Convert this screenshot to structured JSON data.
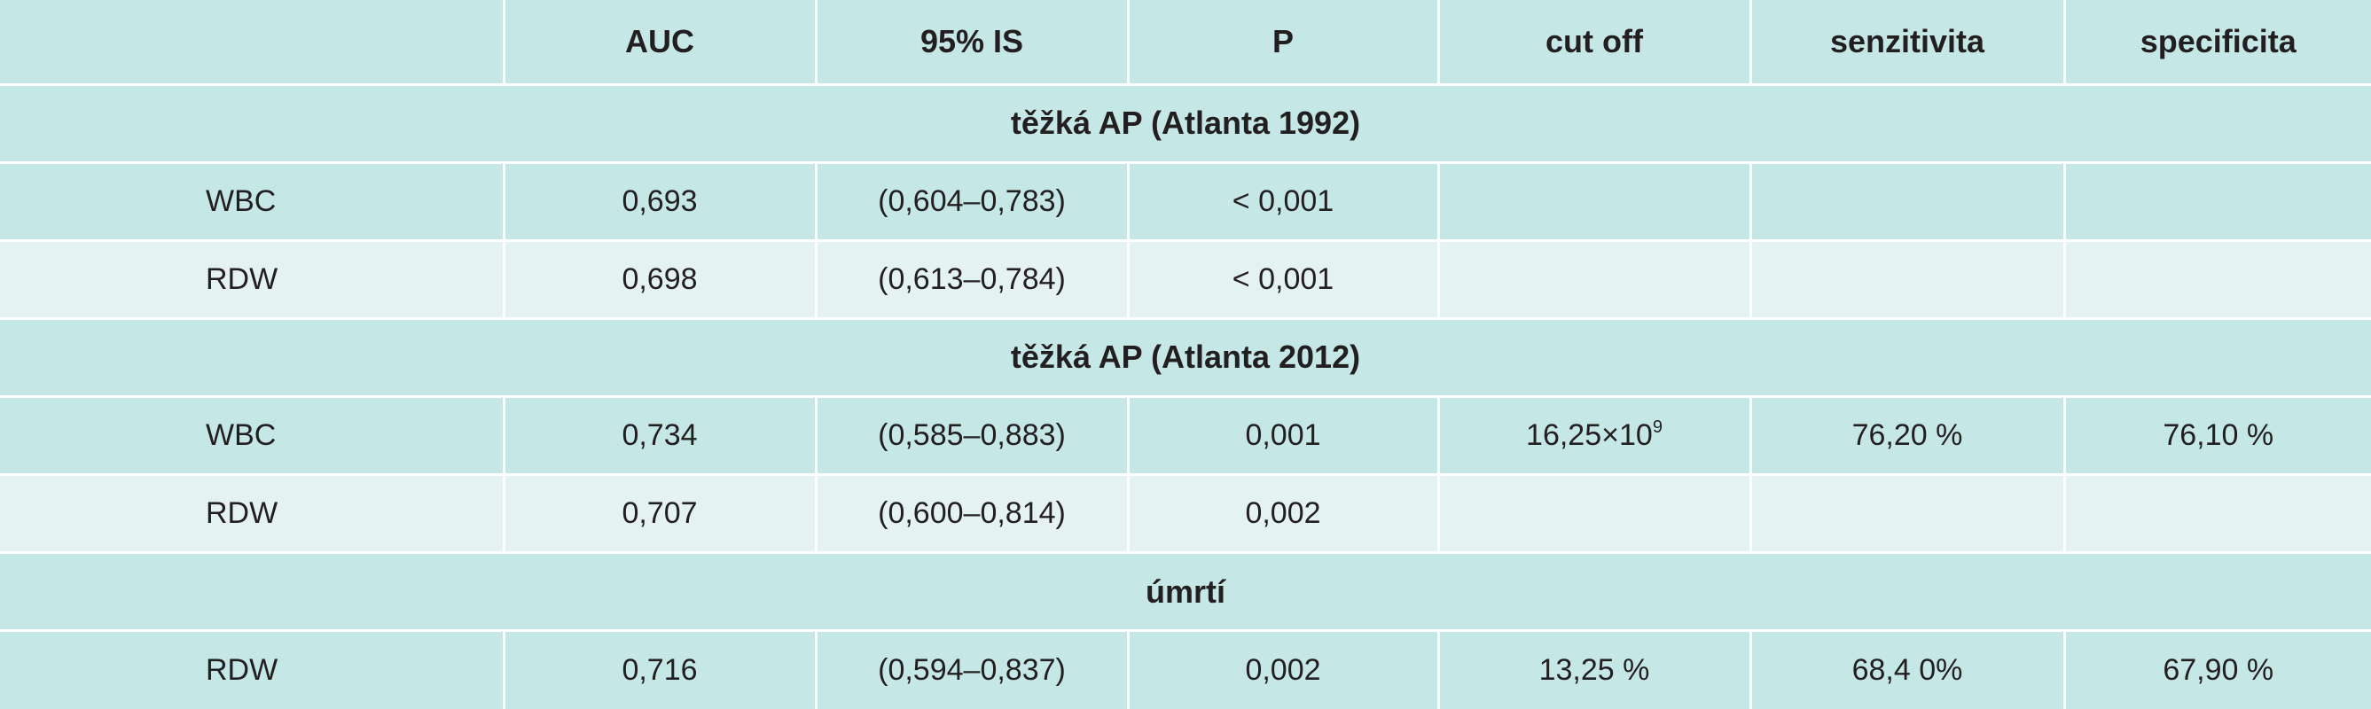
{
  "table": {
    "headers": [
      "",
      "AUC",
      "95% IS",
      "P",
      "cut off",
      "senzitivita",
      "specificita"
    ],
    "sections": [
      {
        "title": "těžká AP (Atlanta 1992)",
        "rows": [
          {
            "label": "WBC",
            "auc": "0,693",
            "ci": "(0,604–0,783)",
            "p": "< 0,001",
            "cutoff": "",
            "cutoff_sup": "",
            "sens": "",
            "spec": ""
          },
          {
            "label": "RDW",
            "auc": "0,698",
            "ci": "(0,613–0,784)",
            "p": "< 0,001",
            "cutoff": "",
            "cutoff_sup": "",
            "sens": "",
            "spec": ""
          }
        ]
      },
      {
        "title": "těžká AP (Atlanta 2012)",
        "rows": [
          {
            "label": "WBC",
            "auc": "0,734",
            "ci": "(0,585–0,883)",
            "p": "0,001",
            "cutoff": "16,25×10",
            "cutoff_sup": "9",
            "sens": "76,20 %",
            "spec": "76,10 %"
          },
          {
            "label": "RDW",
            "auc": "0,707",
            "ci": "(0,600–0,814)",
            "p": "0,002",
            "cutoff": "",
            "cutoff_sup": "",
            "sens": "",
            "spec": ""
          }
        ]
      },
      {
        "title": "úmrtí",
        "rows": [
          {
            "label": "RDW",
            "auc": "0,716",
            "ci": "(0,594–0,837)",
            "p": "0,002",
            "cutoff": "13,25 %",
            "cutoff_sup": "",
            "sens": "68,4 0%",
            "spec": "67,90 %"
          }
        ]
      }
    ]
  }
}
